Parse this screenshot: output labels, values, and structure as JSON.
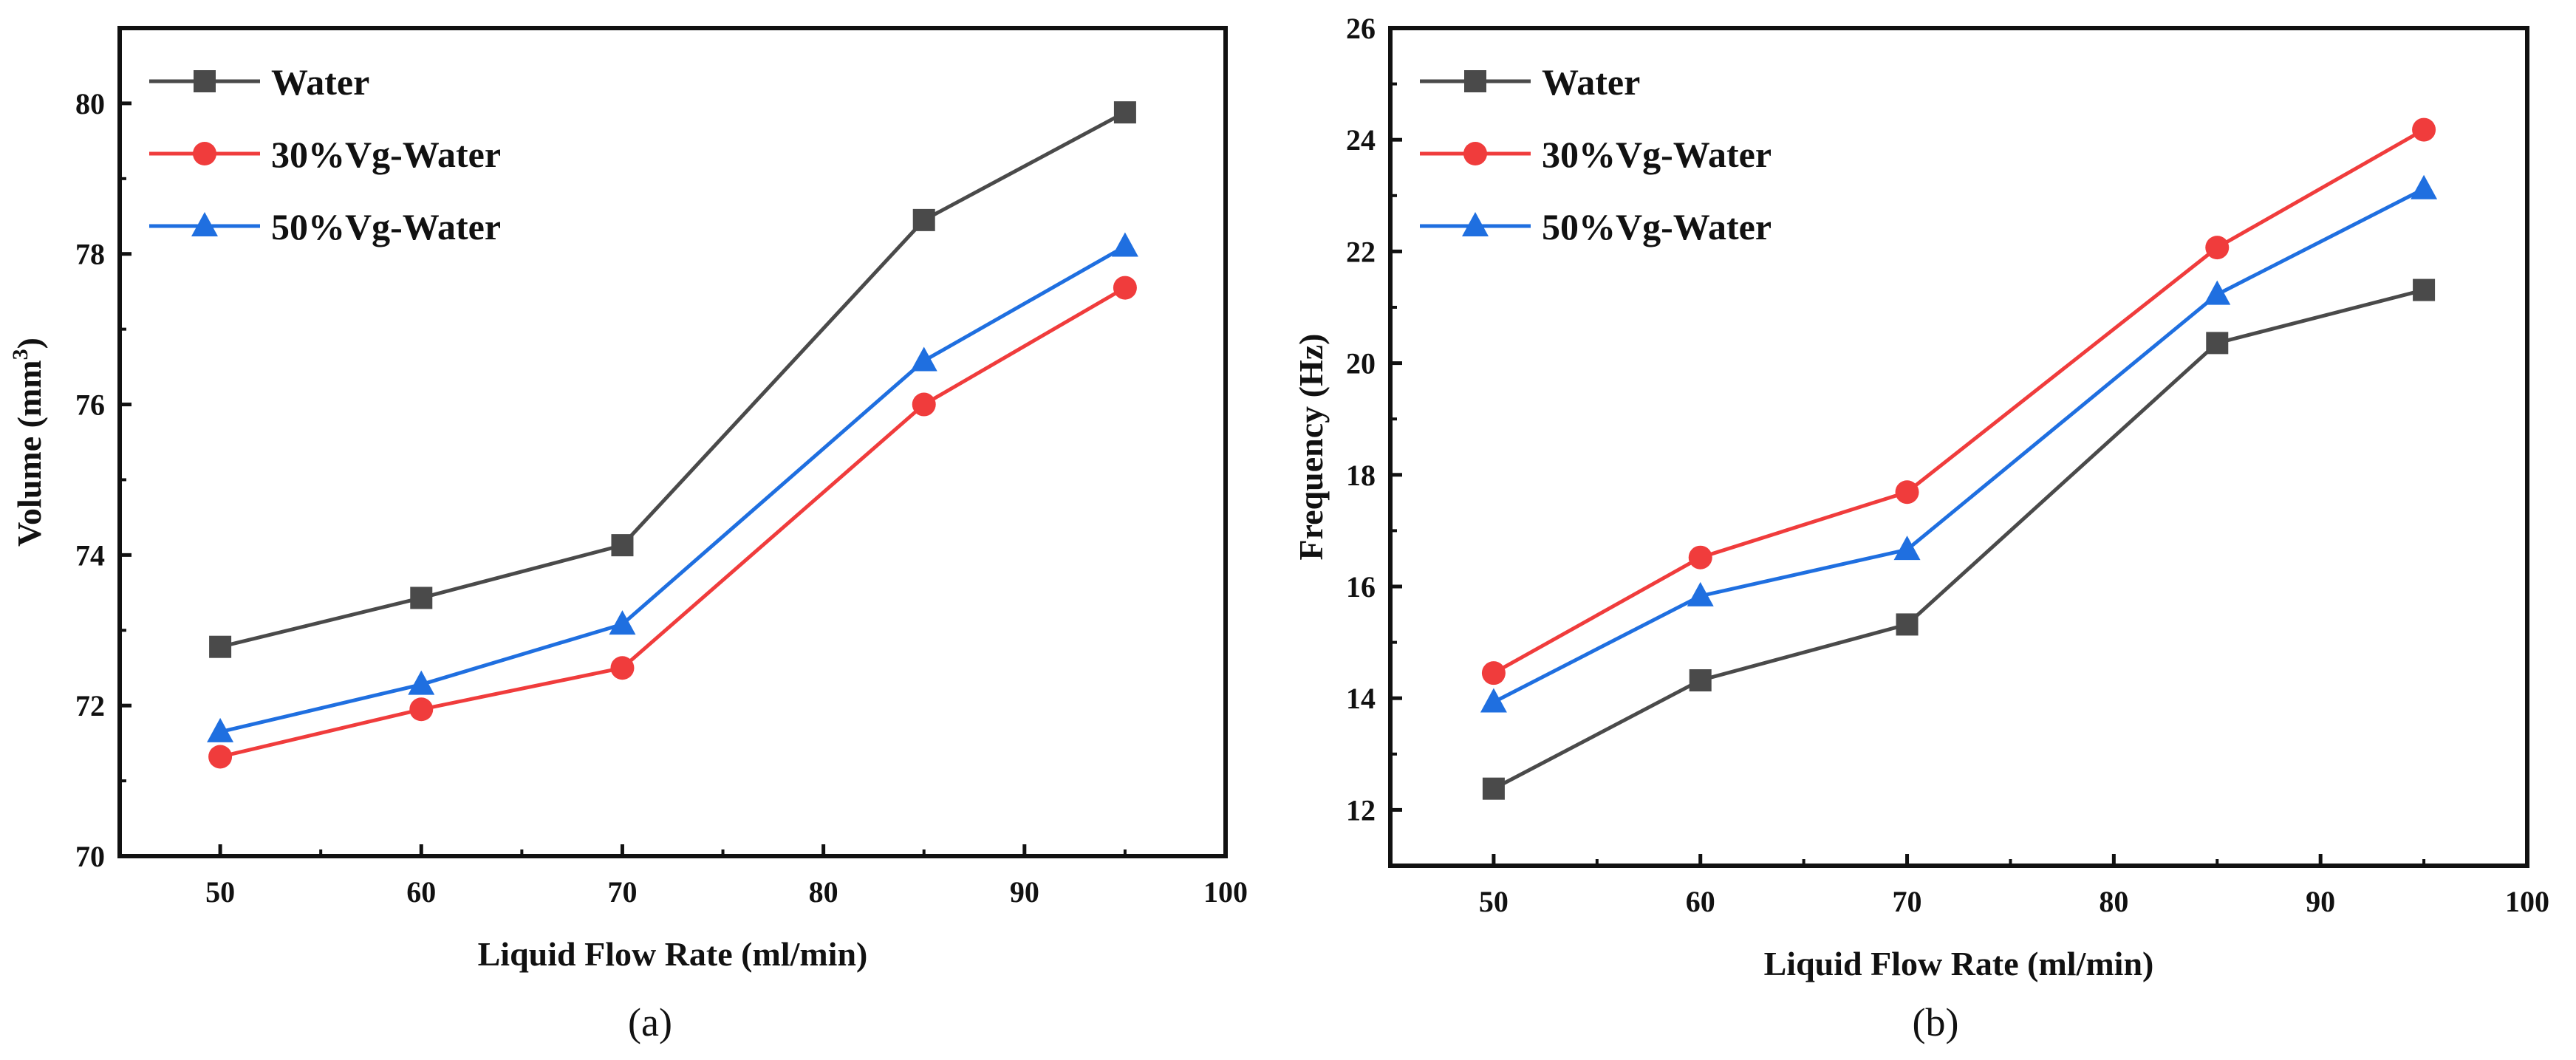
{
  "chart_data": [
    {
      "type": "line",
      "panel_label": "(a)",
      "xlabel": "Liquid Flow Rate (ml/min)",
      "ylabel": "Volume (mm",
      "ylabel_sup": "3",
      "ylabel_close": ")",
      "xlim": [
        45,
        100
      ],
      "ylim": [
        70,
        81
      ],
      "xticks": [
        50,
        60,
        70,
        80,
        90,
        100
      ],
      "yticks": [
        70,
        72,
        74,
        76,
        78,
        80
      ],
      "legend_position": "top-left",
      "grid": false,
      "x": [
        50,
        60,
        70,
        85,
        95
      ],
      "series": [
        {
          "name": "Water",
          "color": "#4a4a4a",
          "marker": "square",
          "values": [
            72.78,
            73.43,
            74.13,
            78.45,
            79.88
          ]
        },
        {
          "name": "30%Vg-Water",
          "color": "#f03c3c",
          "marker": "circle",
          "values": [
            71.32,
            71.95,
            72.5,
            76.0,
            77.55
          ]
        },
        {
          "name": "50%Vg-Water",
          "color": "#1f6fe0",
          "marker": "triangle",
          "values": [
            71.65,
            72.28,
            73.08,
            76.58,
            78.1
          ]
        }
      ]
    },
    {
      "type": "line",
      "panel_label": "(b)",
      "xlabel": "Liquid Flow Rate (ml/min)",
      "ylabel": "Frequency (Hz)",
      "xlim": [
        45,
        100
      ],
      "ylim": [
        11,
        26
      ],
      "xticks": [
        50,
        60,
        70,
        80,
        90,
        100
      ],
      "yticks": [
        12,
        14,
        16,
        18,
        20,
        22,
        24,
        26
      ],
      "legend_position": "top-left",
      "grid": false,
      "x": [
        50,
        60,
        70,
        85,
        95
      ],
      "series": [
        {
          "name": "Water",
          "color": "#4a4a4a",
          "marker": "square",
          "values": [
            12.38,
            14.32,
            15.32,
            20.36,
            21.31
          ]
        },
        {
          "name": "30%Vg-Water",
          "color": "#f03c3c",
          "marker": "circle",
          "values": [
            14.45,
            16.52,
            17.69,
            22.07,
            24.18
          ]
        },
        {
          "name": "50%Vg-Water",
          "color": "#1f6fe0",
          "marker": "triangle",
          "values": [
            13.93,
            15.83,
            16.66,
            21.23,
            23.12
          ]
        }
      ]
    }
  ]
}
